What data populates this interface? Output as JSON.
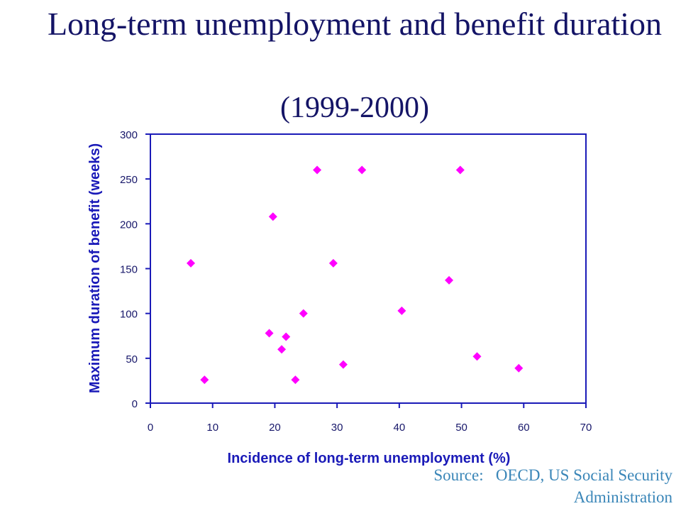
{
  "title": "Long-term unemployment and benefit duration",
  "subtitle": "(1999-2000)",
  "source_line1": "Source:   OECD, US Social Security",
  "source_line2": "Administration",
  "chart_data": {
    "type": "scatter",
    "xlabel": "Incidence of long-term unemployment (%)",
    "ylabel": "Maximum duration of benefit (weeks)",
    "xlim": [
      0,
      70
    ],
    "ylim": [
      0,
      300
    ],
    "xticks": [
      0,
      10,
      20,
      30,
      40,
      50,
      60,
      70
    ],
    "yticks": [
      0,
      50,
      100,
      150,
      200,
      250,
      300
    ],
    "grid": false,
    "marker_color": "#ff00ff",
    "axis_color": "#1a1ab8",
    "points": [
      {
        "x": 6.5,
        "y": 156
      },
      {
        "x": 8.7,
        "y": 26
      },
      {
        "x": 19.1,
        "y": 78
      },
      {
        "x": 19.7,
        "y": 208
      },
      {
        "x": 21.1,
        "y": 60
      },
      {
        "x": 21.8,
        "y": 74
      },
      {
        "x": 23.3,
        "y": 26
      },
      {
        "x": 24.6,
        "y": 100
      },
      {
        "x": 26.8,
        "y": 260
      },
      {
        "x": 29.4,
        "y": 156
      },
      {
        "x": 31.0,
        "y": 43
      },
      {
        "x": 34.0,
        "y": 260
      },
      {
        "x": 40.4,
        "y": 103
      },
      {
        "x": 48.0,
        "y": 137
      },
      {
        "x": 49.8,
        "y": 260
      },
      {
        "x": 52.5,
        "y": 52
      },
      {
        "x": 59.2,
        "y": 39
      }
    ]
  }
}
